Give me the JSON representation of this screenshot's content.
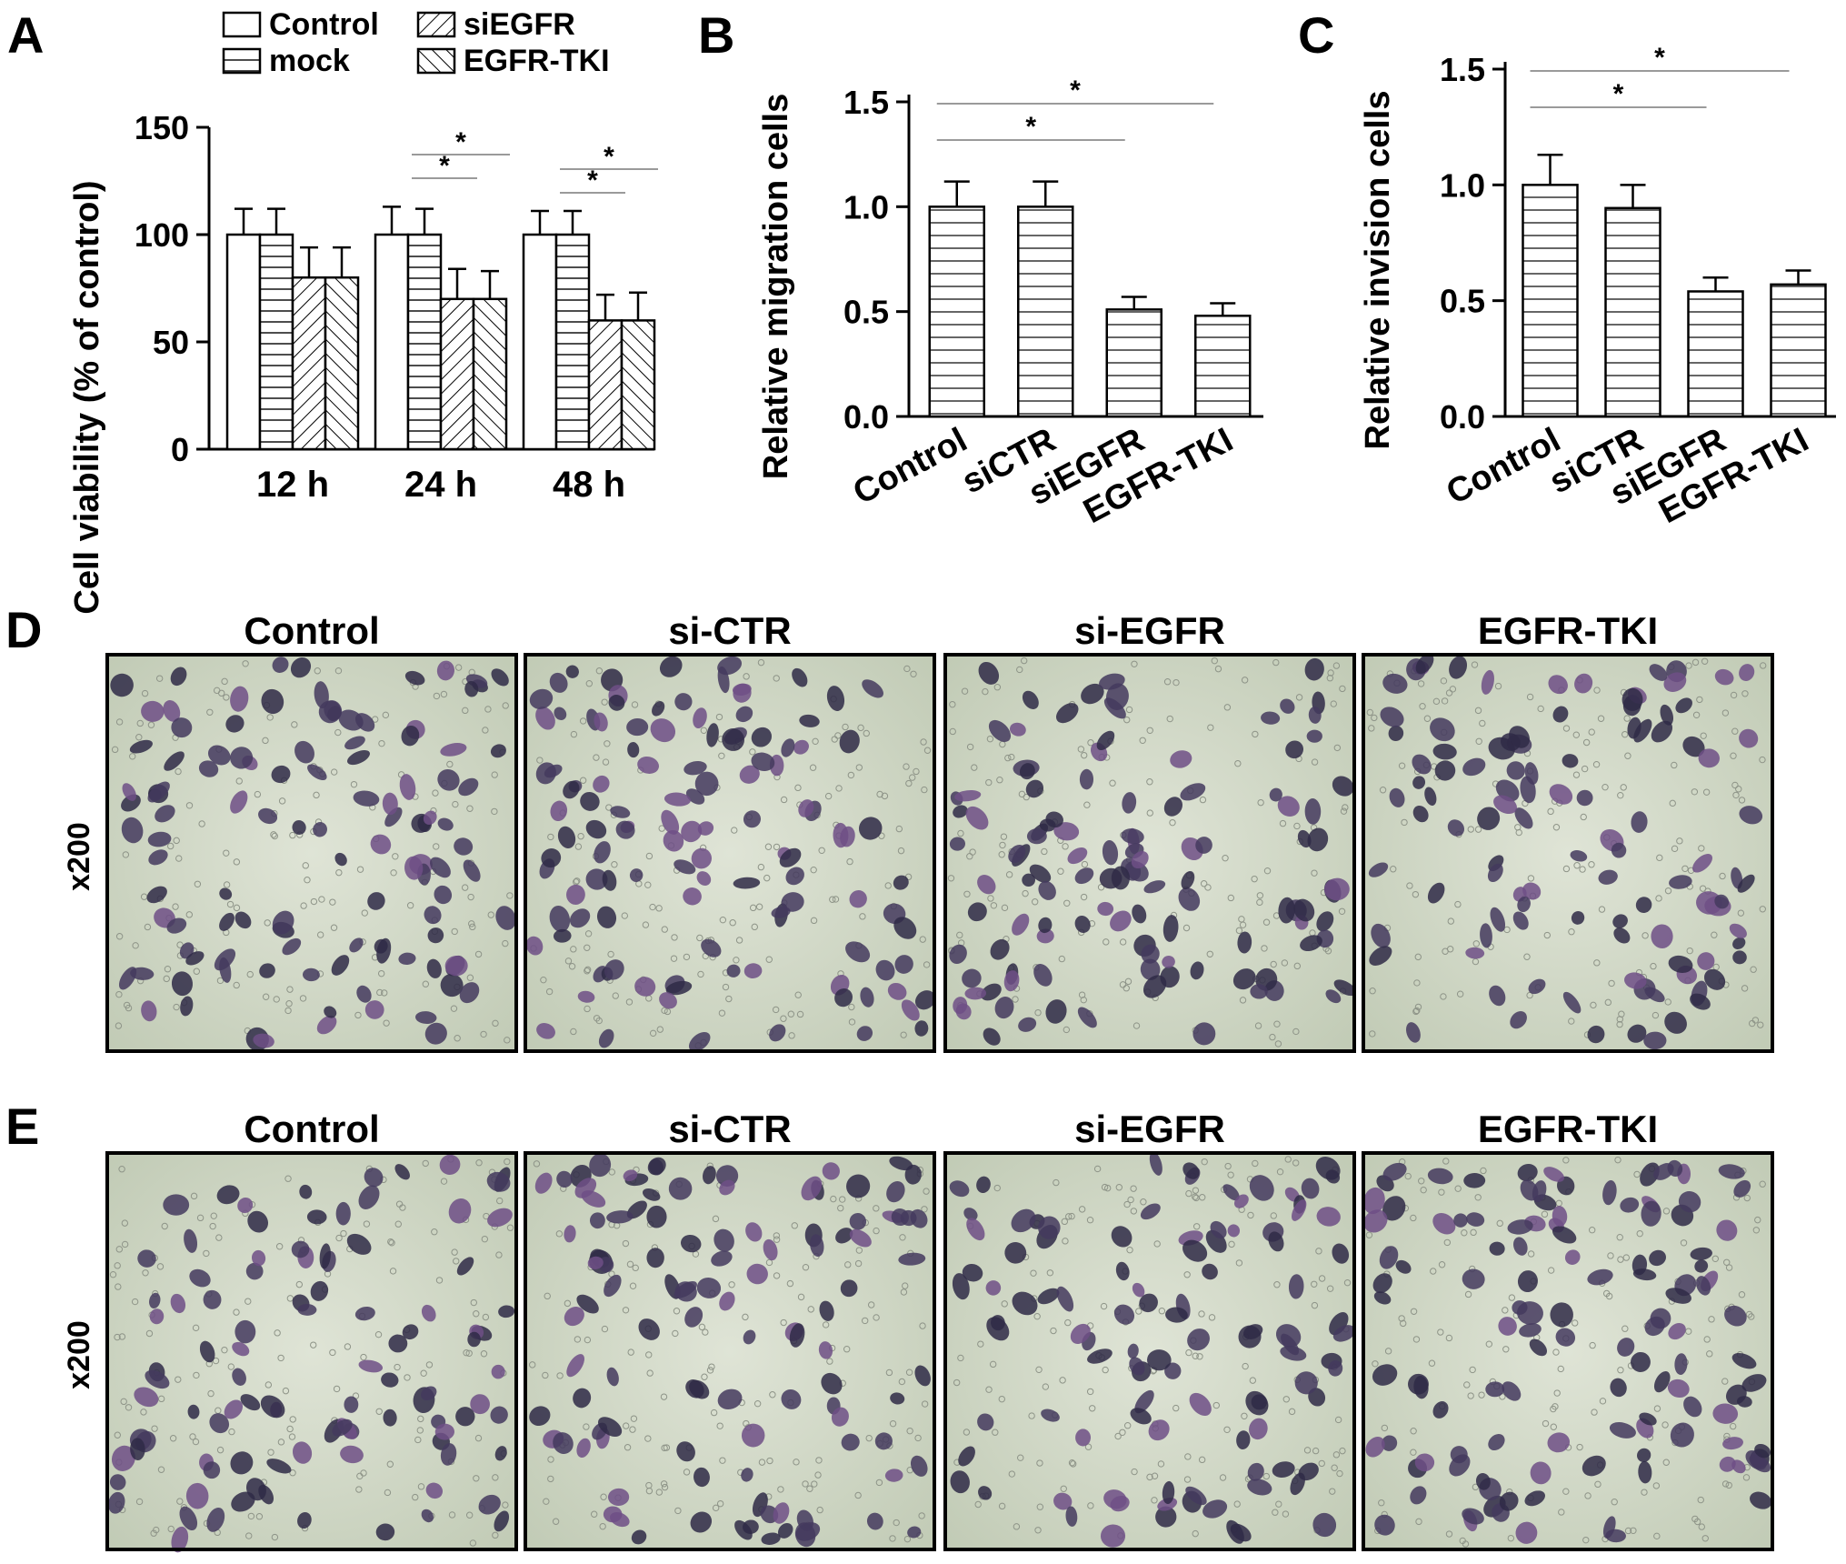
{
  "panels": {
    "A": {
      "letter": "A"
    },
    "B": {
      "letter": "B"
    },
    "C": {
      "letter": "C"
    },
    "D": {
      "letter": "D"
    },
    "E": {
      "letter": "E"
    }
  },
  "chart_data": [
    {
      "panel": "A",
      "type": "bar",
      "ylabel": "Cell viability (% of control)",
      "ylim": [
        0,
        150
      ],
      "yticks": [
        "0",
        "50",
        "100",
        "150"
      ],
      "categories": [
        "12 h",
        "24 h",
        "48 h"
      ],
      "legend_position": "top",
      "series": [
        {
          "name": "Control",
          "pattern": "blank",
          "values": [
            100,
            100,
            100
          ],
          "errors": [
            12,
            13,
            11
          ]
        },
        {
          "name": "mock",
          "pattern": "hlines",
          "values": [
            100,
            100,
            100
          ],
          "errors": [
            12,
            12,
            11
          ]
        },
        {
          "name": "siEGFR",
          "pattern": "diag-right",
          "values": [
            80,
            70,
            60
          ],
          "errors": [
            14,
            14,
            12
          ]
        },
        {
          "name": "EGFR-TKI",
          "pattern": "diag-left",
          "values": [
            80,
            70,
            60
          ],
          "errors": [
            14,
            13,
            13
          ]
        }
      ],
      "significance": [
        {
          "group": 1,
          "from": 1,
          "to": 2,
          "label": "*"
        },
        {
          "group": 1,
          "from": 1,
          "to": 3,
          "label": "*"
        },
        {
          "group": 2,
          "from": 1,
          "to": 2,
          "label": "*"
        },
        {
          "group": 2,
          "from": 1,
          "to": 3,
          "label": "*"
        }
      ]
    },
    {
      "panel": "B",
      "type": "bar",
      "ylabel": "Relative migration cells",
      "ylim": [
        0,
        1.5
      ],
      "yticks": [
        "0.0",
        "0.5",
        "1.0",
        "1.5"
      ],
      "categories": [
        "Control",
        "siCTR",
        "siEGFR",
        "EGFR-TKI"
      ],
      "values": [
        1.0,
        1.0,
        0.51,
        0.48
      ],
      "errors": [
        0.12,
        0.12,
        0.06,
        0.06
      ],
      "significance": [
        {
          "from": 0,
          "to": 2,
          "label": "*"
        },
        {
          "from": 0,
          "to": 3,
          "label": "*"
        }
      ]
    },
    {
      "panel": "C",
      "type": "bar",
      "ylabel": "Relative invision cells",
      "ylim": [
        0,
        1.5
      ],
      "yticks": [
        "0.0",
        "0.5",
        "1.0",
        "1.5"
      ],
      "categories": [
        "Control",
        "siCTR",
        "siEGFR",
        "EGFR-TKI"
      ],
      "values": [
        1.0,
        0.9,
        0.54,
        0.57
      ],
      "errors": [
        0.13,
        0.1,
        0.06,
        0.06
      ],
      "significance": [
        {
          "from": 0,
          "to": 2,
          "label": "*"
        },
        {
          "from": 0,
          "to": 3,
          "label": "*"
        }
      ]
    }
  ],
  "micrographs": {
    "D": {
      "magnification": "x200",
      "titles": [
        "Control",
        "si-CTR",
        "si-EGFR",
        "EGFR-TKI"
      ]
    },
    "E": {
      "magnification": "x200",
      "titles": [
        "Control",
        "si-CTR",
        "si-EGFR",
        "EGFR-TKI"
      ]
    }
  },
  "colors": {
    "bar_stroke": "#000000",
    "bar_fill": "#ffffff",
    "sig_line": "#9a9a9a",
    "micro_bg": "#c9d2bf",
    "cell_stain": "#3e3458"
  }
}
